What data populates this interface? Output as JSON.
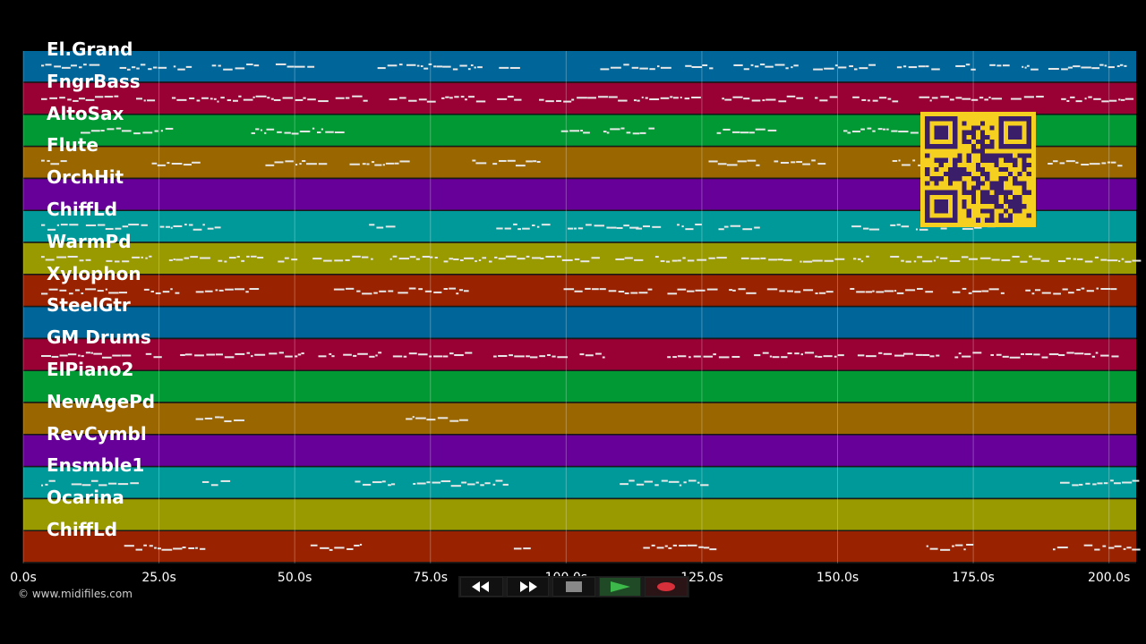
{
  "tracks": [
    {
      "name": "El.Grand",
      "color": "#006699"
    },
    {
      "name": "FngrBass",
      "color": "#990033"
    },
    {
      "name": "AltoSax",
      "color": "#009933"
    },
    {
      "name": "Flute",
      "color": "#996600"
    },
    {
      "name": "OrchHit",
      "color": "#660099"
    },
    {
      "name": "ChiffLd",
      "color": "#009999"
    },
    {
      "name": "WarmPd",
      "color": "#999900"
    },
    {
      "name": "Xylophon",
      "color": "#992200"
    },
    {
      "name": "SteelGtr",
      "color": "#006699"
    },
    {
      "name": "GM Drums",
      "color": "#990033"
    },
    {
      "name": "ElPiano2",
      "color": "#009933"
    },
    {
      "name": "NewAgePd",
      "color": "#996600"
    },
    {
      "name": "RevCymbl",
      "color": "#660099"
    },
    {
      "name": "Ensmble1",
      "color": "#009999"
    },
    {
      "name": "Ocarina",
      "color": "#999900"
    },
    {
      "name": "ChiffLd",
      "color": "#992200"
    }
  ],
  "timeline": {
    "ticks": [
      "0.0s",
      "25.0s",
      "50.0s",
      "75.0s",
      "100.0s",
      "125.0s",
      "150.0s",
      "175.0s",
      "200.0s"
    ],
    "tick_seconds": [
      0,
      25,
      50,
      75,
      100,
      125,
      150,
      175,
      200
    ],
    "max_seconds": 205
  },
  "copyright": "© www.midifiles.com",
  "transport": {
    "buttons": [
      {
        "name": "rewind-button",
        "icon": "rewind-icon"
      },
      {
        "name": "fast-forward-button",
        "icon": "fast-forward-icon"
      },
      {
        "name": "stop-button",
        "icon": "stop-icon"
      },
      {
        "name": "play-button",
        "icon": "play-icon"
      },
      {
        "name": "record-button",
        "icon": "record-icon"
      }
    ]
  },
  "qr_code": {
    "icon": "qr-code-icon",
    "color": "#f5d020"
  }
}
